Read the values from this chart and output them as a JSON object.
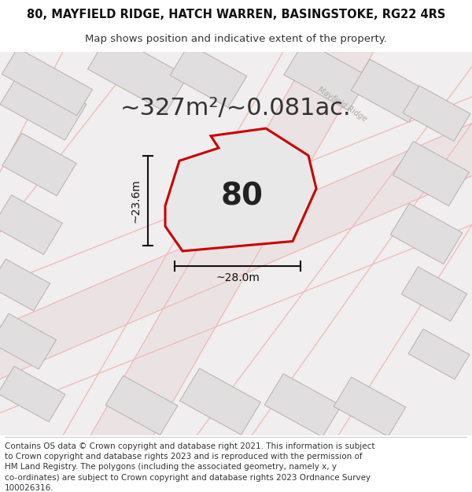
{
  "title_line1": "80, MAYFIELD RIDGE, HATCH WARREN, BASINGSTOKE, RG22 4RS",
  "title_line2": "Map shows position and indicative extent of the property.",
  "area_text": "~327m²/~0.081ac.",
  "label_number": "80",
  "dim_height": "~23.6m",
  "dim_width": "~28.0m",
  "footer_lines": [
    "Contains OS data © Crown copyright and database right 2021. This information is subject",
    "to Crown copyright and database rights 2023 and is reproduced with the permission of",
    "HM Land Registry. The polygons (including the associated geometry, namely x, y",
    "co-ordinates) are subject to Crown copyright and database rights 2023 Ordnance Survey",
    "100026316."
  ],
  "map_bg": "#f0eeee",
  "plot_fill": "#e8e8e8",
  "plot_outline": "#cc0000",
  "road_color_light": "#f0b8b8",
  "building_fill": "#e0dede",
  "building_outline": "#b8b0b0",
  "title_fontsize": 10.5,
  "subtitle_fontsize": 9.5,
  "area_fontsize": 22,
  "label_fontsize": 28,
  "dim_fontsize": 10,
  "footer_fontsize": 7.5,
  "road_label_color": "#b0a8a8",
  "road_label_fontsize": 7
}
